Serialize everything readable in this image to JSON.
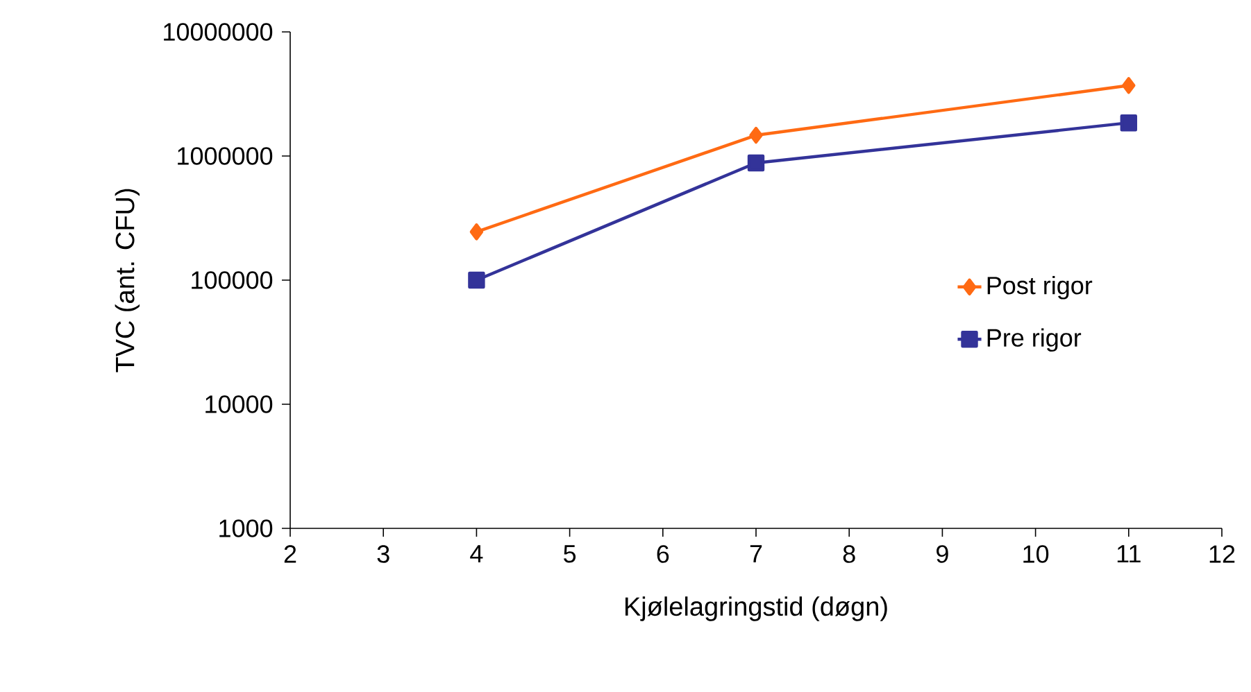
{
  "chart_data": {
    "type": "line",
    "xlabel": "Kjølelagringstid (døgn)",
    "ylabel": "TVC (ant. CFU)",
    "log": "y",
    "grid": false,
    "legend": "right",
    "line_style": "solid",
    "xlim": [
      2,
      12
    ],
    "xticks": [
      2,
      3,
      4,
      5,
      6,
      7,
      8,
      9,
      10,
      11,
      12
    ],
    "ylim": [
      1000,
      10000000
    ],
    "yticks": [
      1000,
      10000,
      100000,
      1000000,
      10000000
    ],
    "series": [
      {
        "name": "Post rigor",
        "color": "#ff6a13",
        "marker": "diamond",
        "x": [
          4,
          7,
          11
        ],
        "values": [
          245000,
          1470000,
          3700000
        ]
      },
      {
        "name": "Pre rigor",
        "color": "#333399",
        "marker": "square",
        "x": [
          4,
          7,
          11
        ],
        "values": [
          100000,
          880000,
          1850000
        ]
      }
    ]
  }
}
